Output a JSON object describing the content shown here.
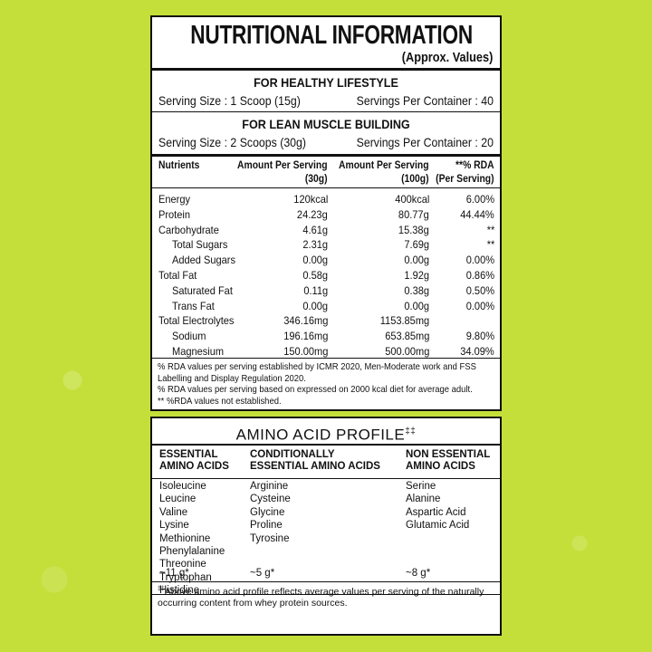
{
  "nutrition": {
    "title": "NUTRITIONAL INFORMATION",
    "subtitle": "(Approx. Values)",
    "servings": [
      {
        "heading": "FOR HEALTHY LIFESTYLE",
        "size": "Serving Size : 1 Scoop (15g)",
        "per_container": "Servings Per Container : 40"
      },
      {
        "heading": "FOR LEAN MUSCLE BUILDING",
        "size": "Serving Size : 2 Scoops (30g)",
        "per_container": "Servings Per Container : 20"
      }
    ],
    "table": {
      "header": [
        {
          "line1": "Nutrients"
        },
        {
          "line1": "Amount Per Serving",
          "line2": "(30g)"
        },
        {
          "line1": "Amount Per Serving",
          "line2": "(100g)"
        },
        {
          "line1": "**% RDA",
          "line2": "(Per Serving)"
        }
      ],
      "rows": [
        {
          "name": "Energy",
          "values": [
            "120kcal",
            "400kcal",
            "6.00%"
          ]
        },
        {
          "name": "Protein",
          "values": [
            "24.23g",
            "80.77g",
            "44.44%"
          ]
        },
        {
          "name": "Carbohydrate",
          "values": [
            "4.61g",
            "15.38g",
            "**"
          ]
        },
        {
          "name": "Total Sugars",
          "indent": true,
          "values": [
            "2.31g",
            "7.69g",
            "**"
          ]
        },
        {
          "name": "Added Sugars",
          "indent": true,
          "values": [
            "0.00g",
            "0.00g",
            "0.00%"
          ]
        },
        {
          "name": "Total Fat",
          "values": [
            "0.58g",
            "1.92g",
            "0.86%"
          ]
        },
        {
          "name": "Saturated Fat",
          "indent": true,
          "values": [
            "0.11g",
            "0.38g",
            "0.50%"
          ]
        },
        {
          "name": "Trans Fat",
          "indent": true,
          "values": [
            "0.00g",
            "0.00g",
            "0.00%"
          ]
        },
        {
          "name": "Total Electrolytes",
          "values": [
            "346.16mg",
            "1153.85mg",
            null
          ]
        },
        {
          "name": "Sodium",
          "indent": true,
          "values": [
            "196.16mg",
            "653.85mg",
            "9.80%"
          ]
        },
        {
          "name": "Magnesium",
          "indent": true,
          "values": [
            "150.00mg",
            "500.00mg",
            "34.09%"
          ]
        }
      ]
    },
    "notes": [
      "% RDA values per serving established by ICMR 2020, Men-Moderate work and FSS Labelling and Display Regulation 2020.",
      "% RDA values per serving based on expressed on 2000 kcal diet for average adult.",
      "** %RDA values not established."
    ]
  },
  "amino": {
    "title": "AMINO ACID PROFILE",
    "mark": "‡‡",
    "columns": [
      {
        "heading": [
          "ESSENTIAL",
          "AMINO ACIDS"
        ],
        "items": [
          "Isoleucine",
          "Leucine",
          "Valine",
          "Lysine",
          "Methionine",
          "Phenylalanine",
          "Threonine",
          "Tryptophan",
          "Histidine"
        ],
        "total": "~11 g*"
      },
      {
        "heading": [
          "CONDITIONALLY",
          "ESSENTIAL AMINO ACIDS"
        ],
        "items": [
          "Arginine",
          "Cysteine",
          "Glycine",
          "Proline",
          "Tyrosine"
        ],
        "total": "~5 g*"
      },
      {
        "heading": [
          "NON ESSENTIAL",
          "AMINO ACIDS"
        ],
        "items": [
          "Serine",
          "Alanine",
          "Aspartic Acid",
          "Glutamic Acid"
        ],
        "total": "~8 g*"
      }
    ],
    "footnote": "Above amino acid profile reflects average values per serving of the naturally occurring content from whey protein sources."
  }
}
